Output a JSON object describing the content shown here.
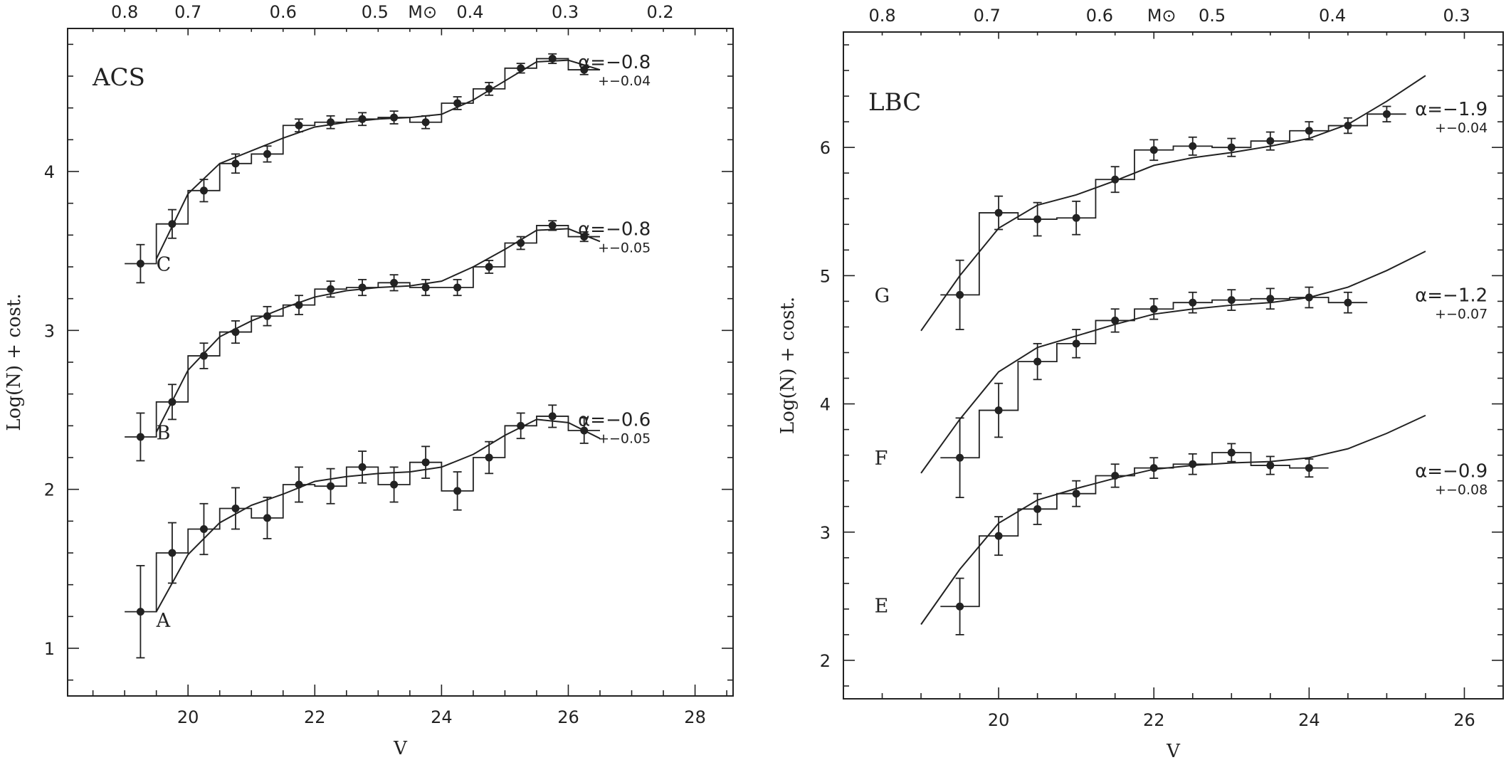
{
  "chart_data": [
    {
      "type": "line",
      "panel_label": "ACS",
      "xlabel": "V",
      "ylabel": "Log(N)  +  cost.",
      "xlim": [
        18.1,
        28.6
      ],
      "ylim": [
        0.7,
        4.9
      ],
      "x_ticks": [
        "20",
        "22",
        "24",
        "26",
        "28"
      ],
      "y_ticks": [
        "1",
        "2",
        "3",
        "4"
      ],
      "top_axis": {
        "label": "M⊙",
        "ticks": [
          {
            "v": 19.0,
            "text": "0.8"
          },
          {
            "v": 20.0,
            "text": "0.7"
          },
          {
            "v": 21.5,
            "text": "0.6"
          },
          {
            "v": 22.95,
            "text": "0.5"
          },
          {
            "v": 24.45,
            "text": "0.4"
          },
          {
            "v": 25.95,
            "text": "0.3"
          },
          {
            "v": 27.45,
            "text": "0.2"
          }
        ],
        "label_v": 23.7
      },
      "series": [
        {
          "name": "C",
          "label_pos": [
            19.5,
            3.42
          ],
          "alpha": "α=−0.8",
          "alpha_err": "+−0.04",
          "alpha_pos": [
            27.3,
            4.65
          ],
          "x": [
            19.25,
            19.75,
            20.25,
            20.75,
            21.25,
            21.75,
            22.25,
            22.75,
            23.25,
            23.75,
            24.25,
            24.75,
            25.25,
            25.75,
            26.25
          ],
          "y": [
            3.42,
            3.67,
            3.88,
            4.05,
            4.11,
            4.29,
            4.31,
            4.33,
            4.34,
            4.31,
            4.43,
            4.52,
            4.65,
            4.71,
            4.64
          ],
          "err": [
            0.12,
            0.09,
            0.07,
            0.06,
            0.05,
            0.04,
            0.04,
            0.04,
            0.04,
            0.04,
            0.04,
            0.04,
            0.03,
            0.03,
            0.03
          ],
          "fit_x": [
            19.5,
            20.0,
            20.5,
            21.0,
            21.5,
            22.0,
            22.5,
            23.0,
            23.5,
            24.0,
            24.5,
            25.0,
            25.5,
            26.0,
            26.5
          ],
          "fit_y": [
            3.45,
            3.86,
            4.05,
            4.13,
            4.21,
            4.28,
            4.31,
            4.33,
            4.34,
            4.36,
            4.45,
            4.57,
            4.69,
            4.7,
            4.64
          ]
        },
        {
          "name": "B",
          "label_pos": [
            19.5,
            2.36
          ],
          "alpha": "α=−0.8",
          "alpha_err": "+−0.05",
          "alpha_pos": [
            27.3,
            3.6
          ],
          "x": [
            19.25,
            19.75,
            20.25,
            20.75,
            21.25,
            21.75,
            22.25,
            22.75,
            23.25,
            23.75,
            24.25,
            24.75,
            25.25,
            25.75,
            26.25
          ],
          "y": [
            2.33,
            2.55,
            2.84,
            2.99,
            3.09,
            3.16,
            3.26,
            3.27,
            3.3,
            3.27,
            3.27,
            3.4,
            3.55,
            3.66,
            3.59
          ],
          "err": [
            0.15,
            0.11,
            0.08,
            0.07,
            0.06,
            0.06,
            0.05,
            0.05,
            0.05,
            0.05,
            0.05,
            0.04,
            0.04,
            0.03,
            0.03
          ],
          "fit_x": [
            19.5,
            20.0,
            20.5,
            21.0,
            21.5,
            22.0,
            22.5,
            23.0,
            23.5,
            24.0,
            24.5,
            25.0,
            25.5,
            26.0,
            26.5
          ],
          "fit_y": [
            2.36,
            2.75,
            2.96,
            3.06,
            3.14,
            3.21,
            3.25,
            3.27,
            3.28,
            3.31,
            3.4,
            3.51,
            3.63,
            3.64,
            3.56
          ]
        },
        {
          "name": "A",
          "label_pos": [
            19.5,
            1.18
          ],
          "alpha": "α=−0.6",
          "alpha_err": "+−0.05",
          "alpha_pos": [
            27.3,
            2.4
          ],
          "x": [
            19.25,
            19.75,
            20.25,
            20.75,
            21.25,
            21.75,
            22.25,
            22.75,
            23.25,
            23.75,
            24.25,
            24.75,
            25.25,
            25.75,
            26.25
          ],
          "y": [
            1.23,
            1.6,
            1.75,
            1.88,
            1.82,
            2.03,
            2.02,
            2.14,
            2.03,
            2.17,
            1.99,
            2.2,
            2.4,
            2.46,
            2.37
          ],
          "err": [
            0.29,
            0.19,
            0.16,
            0.13,
            0.13,
            0.11,
            0.11,
            0.1,
            0.11,
            0.1,
            0.12,
            0.1,
            0.08,
            0.07,
            0.08
          ],
          "fit_x": [
            19.5,
            20.0,
            20.5,
            21.0,
            21.5,
            22.0,
            22.5,
            23.0,
            23.5,
            24.0,
            24.5,
            25.0,
            25.5,
            26.0,
            26.5
          ],
          "fit_y": [
            1.23,
            1.59,
            1.79,
            1.9,
            1.97,
            2.05,
            2.08,
            2.1,
            2.11,
            2.14,
            2.22,
            2.34,
            2.44,
            2.42,
            2.32
          ]
        }
      ]
    },
    {
      "type": "line",
      "panel_label": "LBC",
      "xlabel": "V",
      "ylabel": "Log(N)  +  cost.",
      "xlim": [
        18.0,
        26.5
      ],
      "ylim": [
        1.7,
        6.9
      ],
      "x_ticks": [
        "20",
        "22",
        "24",
        "26"
      ],
      "y_ticks": [
        "2",
        "3",
        "4",
        "5",
        "6"
      ],
      "top_axis": {
        "label": "M⊙",
        "ticks": [
          {
            "v": 18.5,
            "text": "0.8"
          },
          {
            "v": 19.85,
            "text": "0.7"
          },
          {
            "v": 21.3,
            "text": "0.6"
          },
          {
            "v": 22.75,
            "text": "0.5"
          },
          {
            "v": 24.3,
            "text": "0.4"
          },
          {
            "v": 25.9,
            "text": "0.3"
          }
        ],
        "label_v": 22.1
      },
      "series": [
        {
          "name": "G",
          "label_pos": [
            18.4,
            4.85
          ],
          "alpha": "α=−1.9",
          "alpha_err": "+−0.04",
          "alpha_pos": [
            26.3,
            6.25
          ],
          "x": [
            19.5,
            20.0,
            20.5,
            21.0,
            21.5,
            22.0,
            22.5,
            23.0,
            23.5,
            24.0,
            24.5,
            25.0
          ],
          "y": [
            4.85,
            5.49,
            5.44,
            5.45,
            5.75,
            5.98,
            6.01,
            6.0,
            6.05,
            6.13,
            6.17,
            6.26
          ],
          "err": [
            0.27,
            0.13,
            0.13,
            0.13,
            0.1,
            0.08,
            0.07,
            0.07,
            0.07,
            0.07,
            0.06,
            0.06
          ],
          "fit_x": [
            19.0,
            19.5,
            20.0,
            20.5,
            21.0,
            21.5,
            22.0,
            22.5,
            23.0,
            23.5,
            24.0,
            24.5,
            25.0,
            25.5
          ],
          "fit_y": [
            4.57,
            5.0,
            5.37,
            5.55,
            5.63,
            5.74,
            5.86,
            5.92,
            5.96,
            6.01,
            6.07,
            6.18,
            6.36,
            6.56
          ]
        },
        {
          "name": "F",
          "label_pos": [
            18.4,
            3.58
          ],
          "alpha": "α=−1.2",
          "alpha_err": "+−0.07",
          "alpha_pos": [
            26.3,
            4.8
          ],
          "x": [
            19.5,
            20.0,
            20.5,
            21.0,
            21.5,
            22.0,
            22.5,
            23.0,
            23.5,
            24.0,
            24.5
          ],
          "y": [
            3.58,
            3.95,
            4.33,
            4.47,
            4.65,
            4.74,
            4.79,
            4.81,
            4.82,
            4.83,
            4.79
          ],
          "err": [
            0.31,
            0.21,
            0.14,
            0.11,
            0.09,
            0.08,
            0.08,
            0.08,
            0.08,
            0.08,
            0.08
          ],
          "fit_x": [
            19.0,
            19.5,
            20.0,
            20.5,
            21.0,
            21.5,
            22.0,
            22.5,
            23.0,
            23.5,
            24.0,
            24.5,
            25.0,
            25.5
          ],
          "fit_y": [
            3.46,
            3.88,
            4.25,
            4.44,
            4.53,
            4.62,
            4.7,
            4.74,
            4.77,
            4.79,
            4.83,
            4.91,
            5.04,
            5.19
          ]
        },
        {
          "name": "E",
          "label_pos": [
            18.4,
            2.43
          ],
          "alpha": "α=−0.9",
          "alpha_err": "+−0.08",
          "alpha_pos": [
            26.3,
            3.43
          ],
          "x": [
            19.5,
            20.0,
            20.5,
            21.0,
            21.5,
            22.0,
            22.5,
            23.0,
            23.5,
            24.0
          ],
          "y": [
            2.42,
            2.97,
            3.18,
            3.3,
            3.44,
            3.5,
            3.53,
            3.62,
            3.52,
            3.5
          ],
          "err": [
            0.22,
            0.15,
            0.12,
            0.1,
            0.09,
            0.08,
            0.08,
            0.07,
            0.07,
            0.07
          ],
          "fit_x": [
            19.0,
            19.5,
            20.0,
            20.5,
            21.0,
            21.5,
            22.0,
            22.5,
            23.0,
            23.5,
            24.0,
            24.5,
            25.0,
            25.5
          ],
          "fit_y": [
            2.28,
            2.71,
            3.07,
            3.25,
            3.34,
            3.42,
            3.49,
            3.52,
            3.54,
            3.55,
            3.58,
            3.65,
            3.77,
            3.91
          ]
        }
      ]
    }
  ]
}
